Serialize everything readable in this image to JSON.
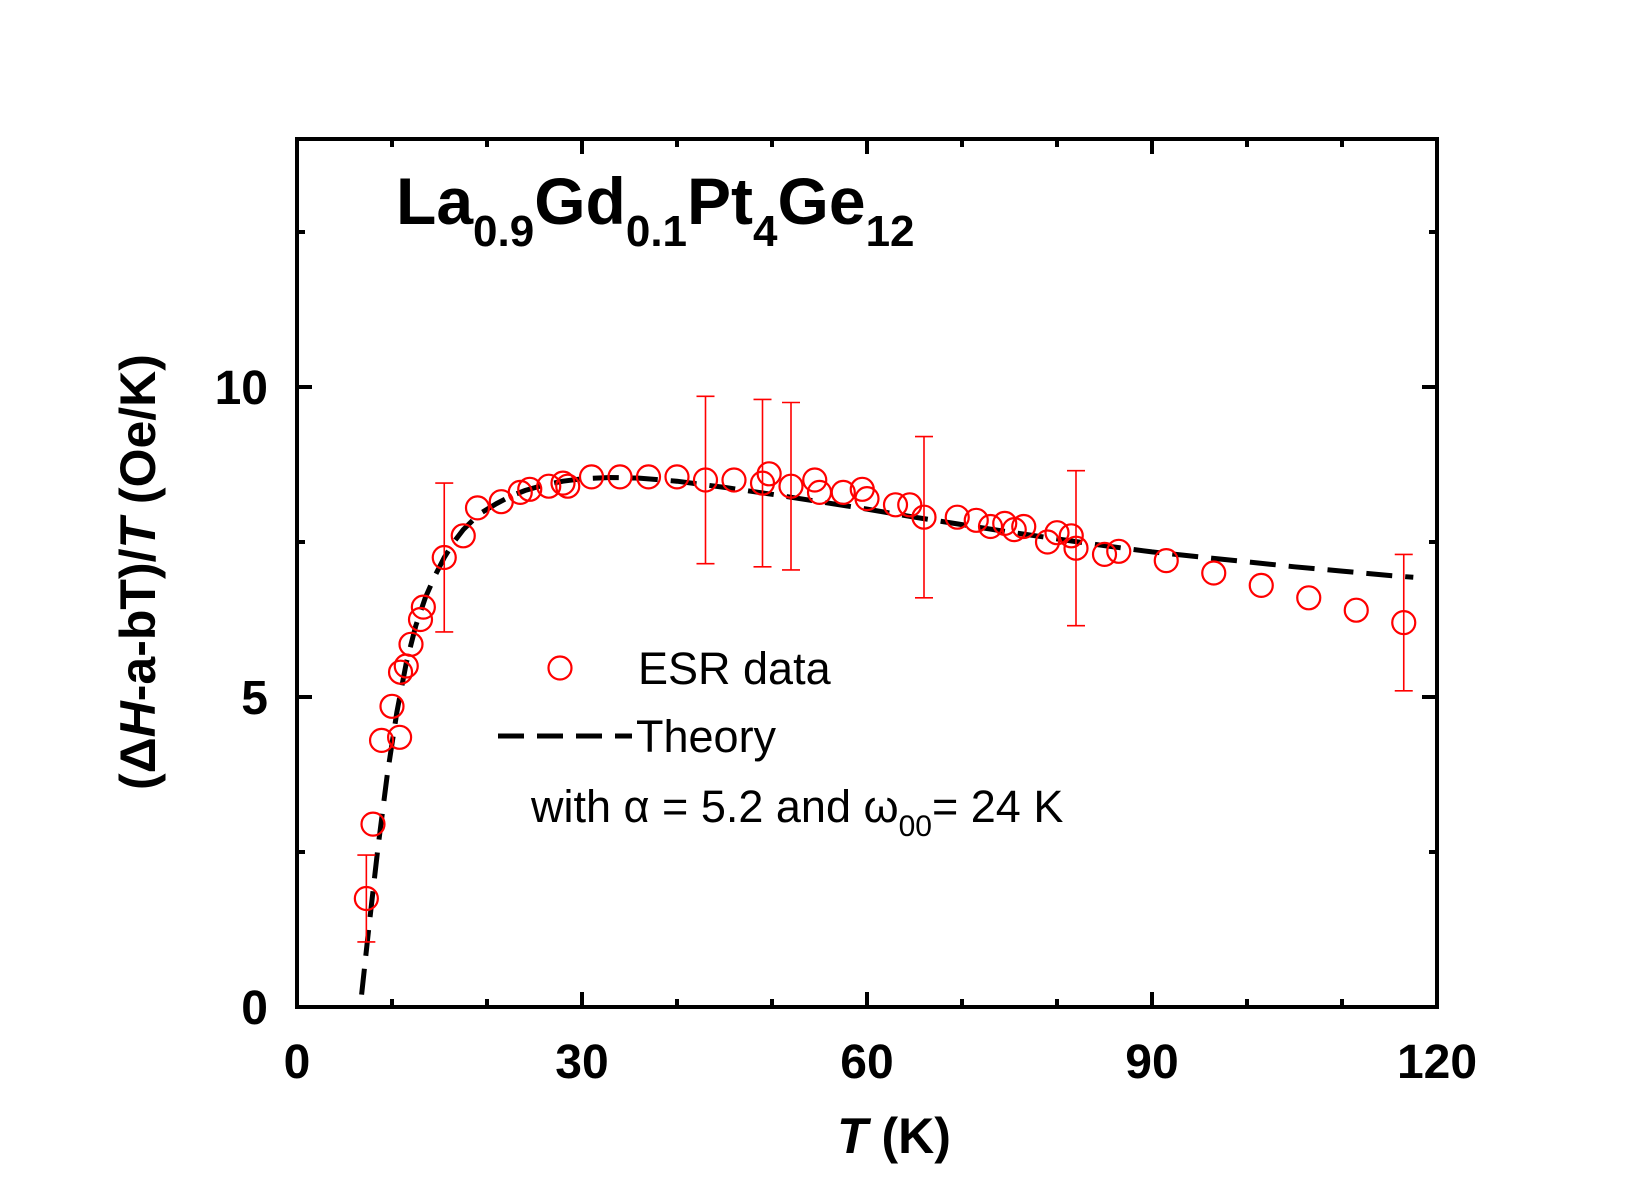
{
  "chart_data": {
    "type": "scatter",
    "title_parts": [
      {
        "text": "La",
        "sub": false
      },
      {
        "text": "0.9",
        "sub": true
      },
      {
        "text": "Gd",
        "sub": false
      },
      {
        "text": "0.1",
        "sub": true
      },
      {
        "text": "Pt",
        "sub": false
      },
      {
        "text": "4",
        "sub": true
      },
      {
        "text": "Ge",
        "sub": false
      },
      {
        "text": "12",
        "sub": true
      }
    ],
    "xlabel": {
      "italic": "T",
      "rest": " (K)"
    },
    "ylabel": {
      "p1": "(Δ",
      "italic1": "H",
      "p2": "-a-bT)/",
      "italic2": "T",
      "p3": " (Oe/K)"
    },
    "xlim": [
      0,
      120
    ],
    "ylim": [
      0,
      14
    ],
    "xticks": [
      0,
      30,
      60,
      90,
      120
    ],
    "xtick_labels": [
      "0",
      "30",
      "60",
      "90",
      "120"
    ],
    "yticks": [
      0,
      5,
      10
    ],
    "ytick_labels": [
      "0",
      "5",
      "10"
    ],
    "grid": false,
    "legend": {
      "position": "center",
      "entries": [
        "ESR data",
        "Theory"
      ],
      "note": {
        "p1": "with α = 5.2 and ω",
        "sub": "00",
        "p2": "= 24 K"
      }
    },
    "colors": {
      "data": "#ff0000",
      "theory": "#000000"
    },
    "series": [
      {
        "name": "ESR data",
        "style": "open-circle",
        "points": [
          {
            "x": 7.3,
            "y": 1.75,
            "err": 0.7
          },
          {
            "x": 8.0,
            "y": 2.95
          },
          {
            "x": 8.9,
            "y": 4.3
          },
          {
            "x": 10.0,
            "y": 4.85
          },
          {
            "x": 10.8,
            "y": 4.35
          },
          {
            "x": 10.9,
            "y": 5.4
          },
          {
            "x": 11.5,
            "y": 5.5
          },
          {
            "x": 12.0,
            "y": 5.85
          },
          {
            "x": 13.0,
            "y": 6.25
          },
          {
            "x": 13.3,
            "y": 6.45
          },
          {
            "x": 15.5,
            "y": 7.25,
            "err": 1.2
          },
          {
            "x": 17.5,
            "y": 7.6
          },
          {
            "x": 19.0,
            "y": 8.05
          },
          {
            "x": 21.5,
            "y": 8.15
          },
          {
            "x": 23.5,
            "y": 8.3
          },
          {
            "x": 24.5,
            "y": 8.35
          },
          {
            "x": 26.5,
            "y": 8.4
          },
          {
            "x": 28.0,
            "y": 8.45
          },
          {
            "x": 28.5,
            "y": 8.4
          },
          {
            "x": 31.0,
            "y": 8.55
          },
          {
            "x": 34.0,
            "y": 8.55
          },
          {
            "x": 37.0,
            "y": 8.55
          },
          {
            "x": 40.0,
            "y": 8.55
          },
          {
            "x": 43.0,
            "y": 8.5,
            "err": 1.35
          },
          {
            "x": 46.0,
            "y": 8.5
          },
          {
            "x": 49.0,
            "y": 8.45,
            "err": 1.35
          },
          {
            "x": 49.7,
            "y": 8.6
          },
          {
            "x": 52.0,
            "y": 8.4,
            "err": 1.35
          },
          {
            "x": 54.5,
            "y": 8.5
          },
          {
            "x": 55.0,
            "y": 8.3
          },
          {
            "x": 57.5,
            "y": 8.3
          },
          {
            "x": 59.5,
            "y": 8.35
          },
          {
            "x": 60.0,
            "y": 8.2
          },
          {
            "x": 63.0,
            "y": 8.1
          },
          {
            "x": 64.5,
            "y": 8.1
          },
          {
            "x": 66.0,
            "y": 7.9,
            "err": 1.3
          },
          {
            "x": 69.5,
            "y": 7.9
          },
          {
            "x": 71.5,
            "y": 7.85
          },
          {
            "x": 73.0,
            "y": 7.75
          },
          {
            "x": 74.5,
            "y": 7.8
          },
          {
            "x": 75.5,
            "y": 7.7
          },
          {
            "x": 76.5,
            "y": 7.75
          },
          {
            "x": 79.0,
            "y": 7.5
          },
          {
            "x": 80.0,
            "y": 7.65
          },
          {
            "x": 81.5,
            "y": 7.6
          },
          {
            "x": 82.0,
            "y": 7.4,
            "err": 1.25
          },
          {
            "x": 85.0,
            "y": 7.3
          },
          {
            "x": 86.5,
            "y": 7.35
          },
          {
            "x": 91.5,
            "y": 7.2
          },
          {
            "x": 96.5,
            "y": 7.0
          },
          {
            "x": 101.5,
            "y": 6.8
          },
          {
            "x": 106.5,
            "y": 6.6
          },
          {
            "x": 111.5,
            "y": 6.4
          },
          {
            "x": 116.5,
            "y": 6.2,
            "err": 1.1
          }
        ]
      },
      {
        "name": "Theory",
        "style": "dashed-line",
        "x": [
          6.8,
          7.5,
          8.5,
          9.5,
          10.5,
          11.5,
          12.5,
          13.5,
          14.5,
          15.5,
          16.5,
          17.5,
          18.5,
          19.5,
          21,
          22.5,
          24,
          26,
          28,
          30,
          33,
          36,
          40,
          45,
          50,
          55,
          60,
          65,
          70,
          75,
          80,
          85,
          90,
          95,
          100,
          105,
          110,
          115,
          117.5
        ],
        "y": [
          0.2,
          1.2,
          2.55,
          3.75,
          4.75,
          5.55,
          6.15,
          6.6,
          6.95,
          7.25,
          7.5,
          7.7,
          7.85,
          7.98,
          8.12,
          8.24,
          8.33,
          8.42,
          8.48,
          8.52,
          8.54,
          8.53,
          8.48,
          8.38,
          8.27,
          8.15,
          8.03,
          7.9,
          7.78,
          7.66,
          7.55,
          7.44,
          7.34,
          7.26,
          7.18,
          7.1,
          7.03,
          6.96,
          6.93
        ]
      }
    ]
  }
}
